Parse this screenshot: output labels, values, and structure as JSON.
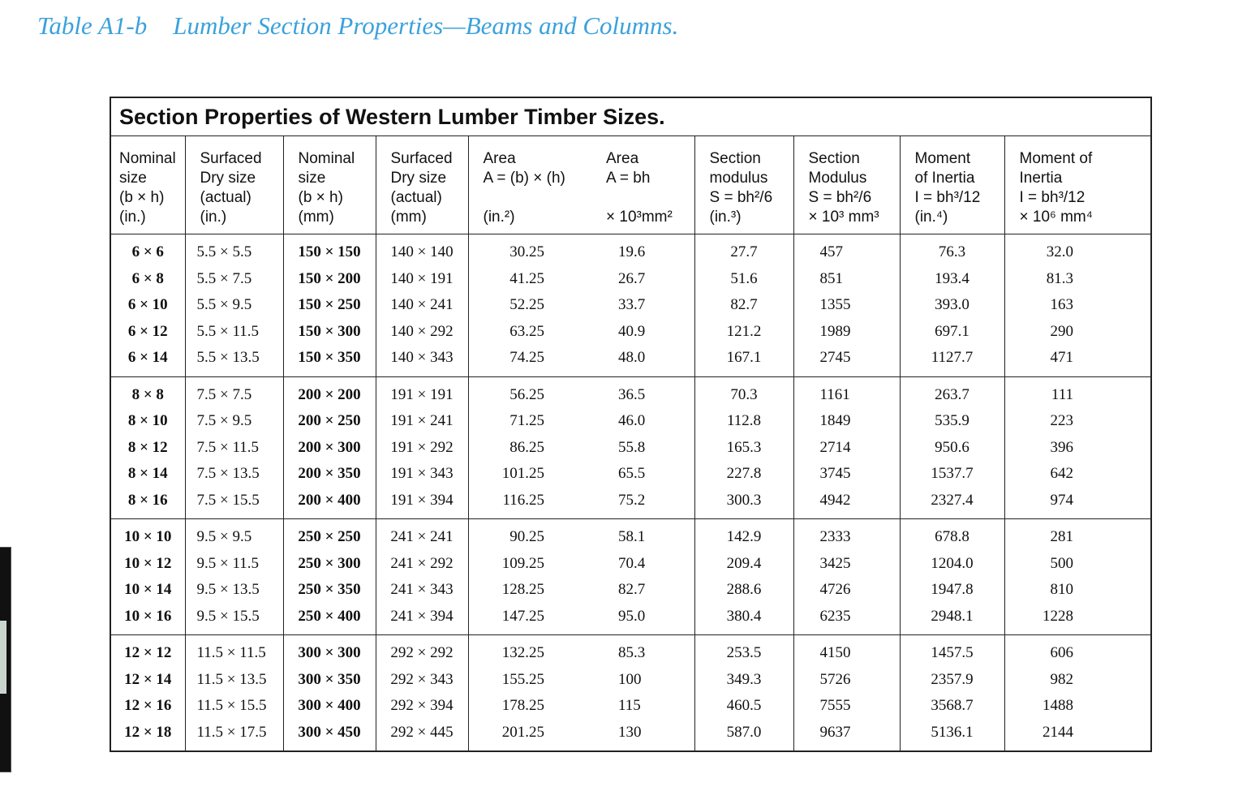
{
  "title": {
    "label": "Table A1-b",
    "text": "Lumber Section Properties—Beams and Columns."
  },
  "table": {
    "caption": "Section Properties of Western Lumber Timber Sizes.",
    "columns": [
      [
        "Nominal",
        "size",
        "(b × h)",
        "(in.)"
      ],
      [
        "Surfaced",
        "Dry size",
        "(actual)",
        "(in.)"
      ],
      [
        "Nominal",
        "size",
        "(b × h)",
        "(mm)"
      ],
      [
        "Surfaced",
        "Dry size",
        "(actual)",
        "(mm)"
      ],
      [
        "Area",
        "A = (b) × (h)",
        "(in.²)"
      ],
      [
        "Area",
        "A = bh",
        "× 10³mm²"
      ],
      [
        "Section",
        "modulus",
        "S = bh²/6",
        "(in.³)"
      ],
      [
        "Section",
        "Modulus",
        "S = bh²/6",
        "× 10³ mm³"
      ],
      [
        "Moment",
        "of Inertia",
        "I = bh³/12",
        "(in.⁴)"
      ],
      [
        "Moment of",
        "Inertia",
        "I = bh³/12",
        "× 10⁶ mm⁴"
      ]
    ],
    "groups": [
      [
        [
          "6 × 6",
          "5.5 × 5.5",
          "150 × 150",
          "140 × 140",
          "30.25",
          "19.6",
          "27.7",
          "457",
          "76.3",
          "32.0"
        ],
        [
          "6 × 8",
          "5.5 × 7.5",
          "150 × 200",
          "140 × 191",
          "41.25",
          "26.7",
          "51.6",
          "851",
          "193.4",
          "81.3"
        ],
        [
          "6 × 10",
          "5.5 × 9.5",
          "150 × 250",
          "140 × 241",
          "52.25",
          "33.7",
          "82.7",
          "1355",
          "393.0",
          "163"
        ],
        [
          "6 × 12",
          "5.5 × 11.5",
          "150 × 300",
          "140 × 292",
          "63.25",
          "40.9",
          "121.2",
          "1989",
          "697.1",
          "290"
        ],
        [
          "6 × 14",
          "5.5 × 13.5",
          "150 × 350",
          "140 × 343",
          "74.25",
          "48.0",
          "167.1",
          "2745",
          "1127.7",
          "471"
        ]
      ],
      [
        [
          "8 × 8",
          "7.5 × 7.5",
          "200 × 200",
          "191 × 191",
          "56.25",
          "36.5",
          "70.3",
          "1161",
          "263.7",
          "111"
        ],
        [
          "8 × 10",
          "7.5 × 9.5",
          "200 × 250",
          "191 × 241",
          "71.25",
          "46.0",
          "112.8",
          "1849",
          "535.9",
          "223"
        ],
        [
          "8 × 12",
          "7.5 × 11.5",
          "200 × 300",
          "191 × 292",
          "86.25",
          "55.8",
          "165.3",
          "2714",
          "950.6",
          "396"
        ],
        [
          "8 × 14",
          "7.5 × 13.5",
          "200 × 350",
          "191 × 343",
          "101.25",
          "65.5",
          "227.8",
          "3745",
          "1537.7",
          "642"
        ],
        [
          "8 × 16",
          "7.5 × 15.5",
          "200 × 400",
          "191 × 394",
          "116.25",
          "75.2",
          "300.3",
          "4942",
          "2327.4",
          "974"
        ]
      ],
      [
        [
          "10 × 10",
          "9.5 × 9.5",
          "250 × 250",
          "241 × 241",
          "90.25",
          "58.1",
          "142.9",
          "2333",
          "678.8",
          "281"
        ],
        [
          "10 × 12",
          "9.5 × 11.5",
          "250 × 300",
          "241 × 292",
          "109.25",
          "70.4",
          "209.4",
          "3425",
          "1204.0",
          "500"
        ],
        [
          "10 × 14",
          "9.5 × 13.5",
          "250 × 350",
          "241 × 343",
          "128.25",
          "82.7",
          "288.6",
          "4726",
          "1947.8",
          "810"
        ],
        [
          "10 × 16",
          "9.5 × 15.5",
          "250 × 400",
          "241 × 394",
          "147.25",
          "95.0",
          "380.4",
          "6235",
          "2948.1",
          "1228"
        ]
      ],
      [
        [
          "12 × 12",
          "11.5 × 11.5",
          "300 × 300",
          "292 × 292",
          "132.25",
          "85.3",
          "253.5",
          "4150",
          "1457.5",
          "606"
        ],
        [
          "12 × 14",
          "11.5 × 13.5",
          "300 × 350",
          "292 × 343",
          "155.25",
          "100",
          "349.3",
          "5726",
          "2357.9",
          "982"
        ],
        [
          "12 × 16",
          "11.5 × 15.5",
          "300 × 400",
          "292 × 394",
          "178.25",
          "115",
          "460.5",
          "7555",
          "3568.7",
          "1488"
        ],
        [
          "12 × 18",
          "11.5 × 17.5",
          "300 × 450",
          "292 × 445",
          "201.25",
          "130",
          "587.0",
          "9637",
          "5136.1",
          "2144"
        ]
      ]
    ]
  }
}
